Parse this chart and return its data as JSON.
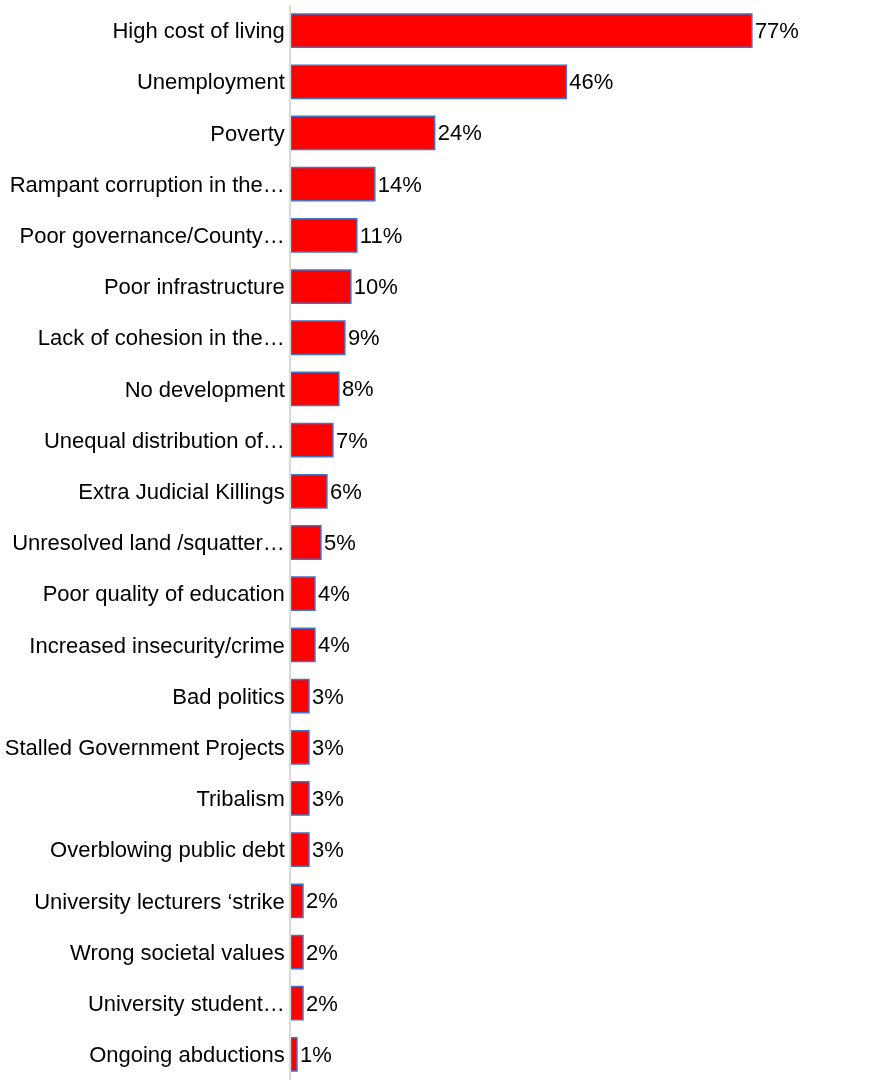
{
  "chart_data": {
    "type": "bar",
    "orientation": "horizontal",
    "categories": [
      "High cost of living",
      "Unemployment",
      "Poverty",
      "Rampant corruption in the…",
      "Poor governance/County…",
      "Poor infrastructure",
      "Lack of cohesion in the…",
      "No development",
      "Unequal distribution of…",
      "Extra Judicial Killings",
      "Unresolved land /squatter…",
      "Poor quality of education",
      "Increased insecurity/crime",
      "Bad politics",
      "Stalled Government Projects",
      "Tribalism",
      "Overblowing public debt",
      "University lecturers ‘strike",
      "Wrong societal values",
      "University student…",
      "Ongoing abductions"
    ],
    "values": [
      77,
      46,
      24,
      14,
      11,
      10,
      9,
      8,
      7,
      6,
      5,
      4,
      4,
      3,
      3,
      3,
      3,
      2,
      2,
      2,
      1
    ],
    "value_labels": [
      "77%",
      "46%",
      "24%",
      "14%",
      "11%",
      "10%",
      "9%",
      "8%",
      "7%",
      "6%",
      "5%",
      "4%",
      "4%",
      "3%",
      "3%",
      "3%",
      "3%",
      "2%",
      "2%",
      "2%",
      "1%"
    ],
    "color": "#ff0000",
    "legend": false
  }
}
